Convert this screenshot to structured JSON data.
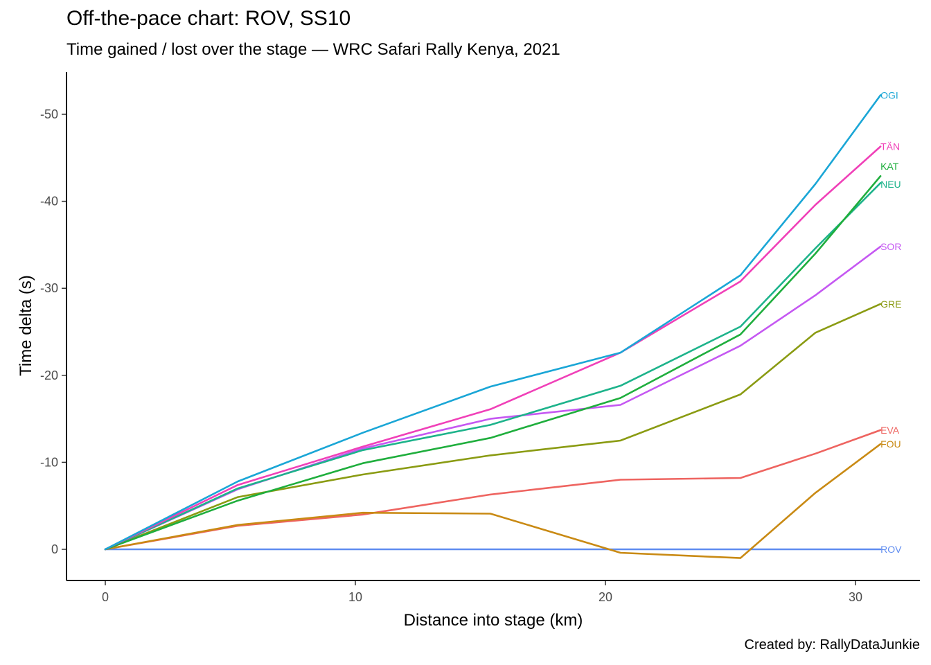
{
  "header": {
    "title": "Off-the-pace chart: ROV, SS10",
    "subtitle": "Time gained / lost over the stage — WRC Safari Rally Kenya, 2021"
  },
  "caption": "Created by: RallyDataJunkie",
  "chart_data": {
    "type": "line",
    "title": "Off-the-pace chart: ROV, SS10",
    "subtitle": "Time gained / lost over the stage — WRC Safari Rally Kenya, 2021",
    "xlabel": "Distance into stage (km)",
    "ylabel": "Time delta (s)",
    "xlim": [
      -1.5,
      32.5
    ],
    "ylim": [
      -55,
      3.5
    ],
    "y_reversed": true,
    "x_ticks": [
      0,
      10,
      20,
      30
    ],
    "y_ticks": [
      0,
      -10,
      -20,
      -30,
      -40,
      -50
    ],
    "grid": false,
    "legend": "none (direct labels at line ends)",
    "series": [
      {
        "name": "OGI",
        "color": "#1aa6d6",
        "x": [
          0,
          5.3,
          10.3,
          15.4,
          20.6,
          25.4,
          28.4,
          31.0
        ],
        "y": [
          0,
          -7.8,
          -13.4,
          -18.7,
          -22.6,
          -31.5,
          -42.0,
          -52.2
        ]
      },
      {
        "name": "TÄN",
        "color": "#f040b8",
        "x": [
          0,
          5.3,
          10.3,
          15.4,
          20.6,
          25.4,
          28.4,
          31.0
        ],
        "y": [
          0,
          -7.4,
          -11.8,
          -16.1,
          -22.6,
          -30.8,
          -39.6,
          -46.3
        ]
      },
      {
        "name": "KAT",
        "color": "#1fae3d",
        "x": [
          0,
          5.3,
          10.3,
          15.4,
          20.6,
          25.4,
          28.4,
          31.0
        ],
        "y": [
          0,
          -5.6,
          -9.9,
          -12.8,
          -17.4,
          -24.7,
          -34.0,
          -42.9
        ]
      },
      {
        "name": "NEU",
        "color": "#1db38b",
        "x": [
          0,
          5.3,
          10.3,
          15.4,
          20.6,
          25.4,
          28.4,
          31.0
        ],
        "y": [
          0,
          -7.0,
          -11.4,
          -14.3,
          -18.8,
          -25.6,
          -34.6,
          -42.1
        ]
      },
      {
        "name": "SOR",
        "color": "#c558f2",
        "x": [
          0,
          5.3,
          10.3,
          15.4,
          20.6,
          25.4,
          28.4,
          31.0
        ],
        "y": [
          0,
          -6.9,
          -11.6,
          -15.0,
          -16.6,
          -23.4,
          -29.2,
          -34.8
        ]
      },
      {
        "name": "GRE",
        "color": "#8a9b12",
        "x": [
          0,
          5.3,
          10.3,
          15.4,
          20.6,
          25.4,
          28.4,
          31.0
        ],
        "y": [
          0,
          -6.0,
          -8.6,
          -10.8,
          -12.5,
          -17.8,
          -24.9,
          -28.2
        ]
      },
      {
        "name": "EVA",
        "color": "#ee6460",
        "x": [
          0,
          5.3,
          10.3,
          15.4,
          20.6,
          25.4,
          28.4,
          31.0
        ],
        "y": [
          0,
          -2.7,
          -4.0,
          -6.3,
          -8.0,
          -8.2,
          -11.0,
          -13.7
        ]
      },
      {
        "name": "FOU",
        "color": "#c98a14",
        "x": [
          0,
          5.3,
          10.3,
          15.4,
          20.6,
          25.4,
          28.4,
          31.0
        ],
        "y": [
          0,
          -2.8,
          -4.2,
          -4.1,
          0.4,
          1.0,
          -6.5,
          -12.1
        ]
      },
      {
        "name": "ROV",
        "color": "#5f8cf0",
        "x": [
          0,
          5.3,
          10.3,
          15.4,
          20.6,
          25.4,
          28.4,
          31.0
        ],
        "y": [
          0,
          0,
          0,
          0,
          0,
          0,
          0,
          0
        ]
      }
    ]
  }
}
